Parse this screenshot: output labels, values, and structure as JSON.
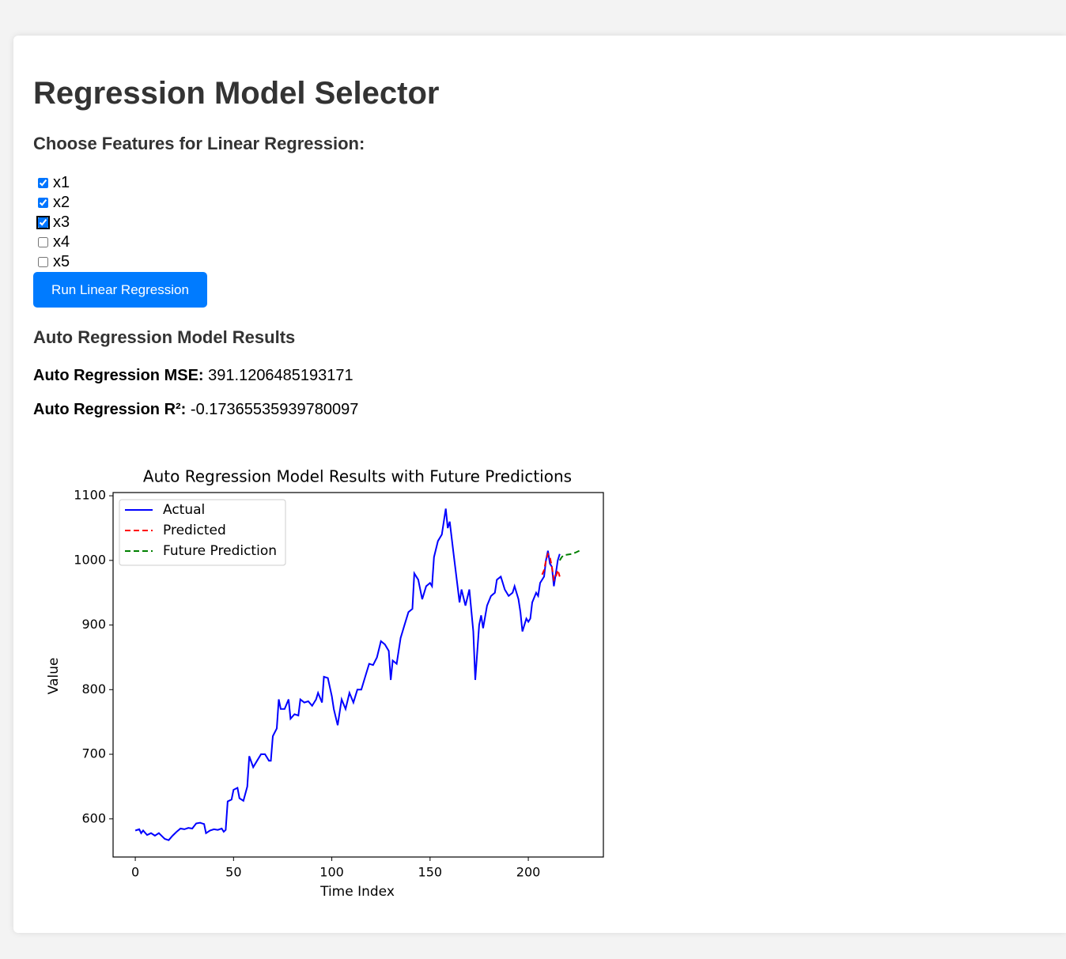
{
  "header": {
    "title": "Regression Model Selector"
  },
  "features": {
    "heading": "Choose Features for Linear Regression:",
    "options": [
      {
        "label": "x1",
        "checked": true
      },
      {
        "label": "x2",
        "checked": true
      },
      {
        "label": "x3",
        "checked": true
      },
      {
        "label": "x4",
        "checked": false
      },
      {
        "label": "x5",
        "checked": false
      }
    ]
  },
  "button": {
    "label": "Run Linear Regression"
  },
  "results": {
    "heading": "Auto Regression Model Results",
    "metrics": [
      {
        "label": "Auto Regression MSE:",
        "value": "391.1206485193171"
      },
      {
        "label": "Auto Regression R²:",
        "value": "-0.17365535939780097"
      }
    ]
  },
  "chart_data": {
    "type": "line",
    "title": "Auto Regression Model Results with Future Predictions",
    "x_label": "Time Index",
    "y_label": "Value",
    "xlim": [
      -11.3,
      238.2
    ],
    "ylim": [
      541,
      1105
    ],
    "xticks": [
      0,
      50,
      100,
      150,
      200
    ],
    "yticks": [
      600,
      700,
      800,
      900,
      1000,
      1100
    ],
    "legend": "upper-left",
    "series": [
      {
        "name": "Actual",
        "color": "#0000ff",
        "linestyle": "solid",
        "x": [
          0,
          2,
          3,
          4,
          6,
          8,
          10,
          12,
          14,
          15,
          17,
          19,
          21,
          23,
          25,
          27,
          29,
          31,
          33,
          35,
          36,
          38,
          40,
          42,
          44,
          45,
          46,
          47,
          49,
          50,
          52,
          53,
          55,
          57,
          58,
          60,
          62,
          64,
          66,
          68,
          69,
          70,
          72,
          73,
          74,
          76,
          78,
          79,
          81,
          83,
          84,
          86,
          88,
          90,
          92,
          93,
          95,
          96,
          98,
          100,
          101,
          103,
          105,
          107,
          109,
          111,
          113,
          115,
          117,
          119,
          121,
          123,
          125,
          127,
          129,
          130,
          131,
          133,
          135,
          137,
          139,
          141,
          142,
          144,
          146,
          148,
          150,
          151,
          152,
          154,
          156,
          158,
          159,
          160,
          162,
          164,
          165,
          166,
          168,
          170,
          172,
          173,
          175,
          176,
          177,
          179,
          181,
          183,
          184,
          186,
          188,
          190,
          192,
          193,
          195,
          196,
          197,
          198,
          199,
          200,
          201,
          202,
          204,
          205,
          206,
          208,
          209,
          210,
          211,
          212,
          213,
          214,
          215,
          216
        ],
        "values": [
          582,
          584,
          578,
          582,
          575,
          578,
          574,
          578,
          572,
          569,
          567,
          574,
          580,
          585,
          584,
          586,
          585,
          593,
          594,
          592,
          578,
          582,
          584,
          583,
          585,
          580,
          583,
          627,
          630,
          645,
          648,
          632,
          628,
          650,
          697,
          680,
          690,
          700,
          700,
          690,
          690,
          728,
          740,
          785,
          770,
          770,
          785,
          755,
          762,
          760,
          785,
          780,
          782,
          775,
          785,
          795,
          780,
          820,
          818,
          790,
          770,
          745,
          785,
          770,
          795,
          780,
          800,
          800,
          820,
          840,
          838,
          850,
          875,
          870,
          860,
          815,
          845,
          840,
          880,
          900,
          920,
          925,
          980,
          970,
          940,
          960,
          965,
          960,
          1005,
          1030,
          1040,
          1080,
          1050,
          1060,
          1010,
          960,
          935,
          955,
          930,
          955,
          890,
          815,
          900,
          915,
          895,
          930,
          945,
          950,
          970,
          975,
          955,
          945,
          950,
          960,
          940,
          920,
          890,
          900,
          910,
          905,
          910,
          935,
          950,
          945,
          965,
          975,
          1000,
          1015,
          995,
          990,
          960,
          980,
          1000,
          1010
        ]
      },
      {
        "name": "Predicted",
        "color": "#ff0000",
        "linestyle": "dashed",
        "x": [
          207,
          208,
          209,
          210,
          211,
          212,
          213,
          214,
          215,
          216
        ],
        "values": [
          978,
          985,
          1000,
          1010,
          1005,
          990,
          970,
          975,
          985,
          975
        ]
      },
      {
        "name": "Future Prediction",
        "color": "#008000",
        "linestyle": "dashed",
        "x": [
          216,
          217,
          218,
          220,
          222,
          224,
          226
        ],
        "values": [
          1000,
          1005,
          1008,
          1009,
          1010,
          1012,
          1015
        ]
      }
    ]
  }
}
